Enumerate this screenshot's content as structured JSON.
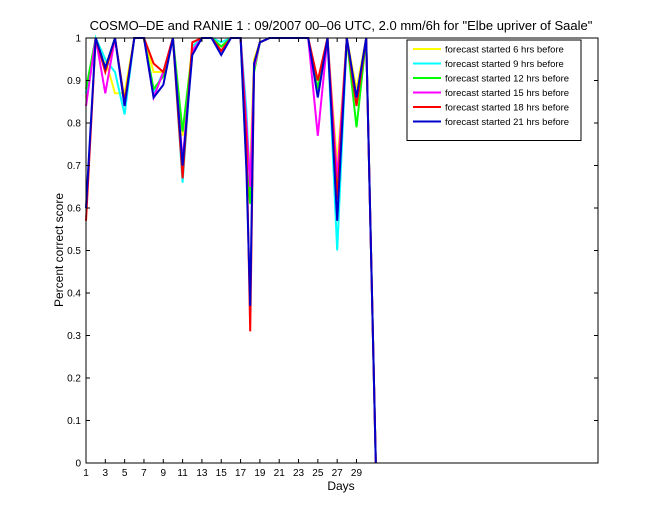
{
  "chart_data": {
    "type": "line",
    "title": "COSMO–DE and RANIE 1 : 09/2007 00–06 UTC, 2.0 mm/6h for \"Elbe upriver of Saale\"",
    "xlabel": "Days",
    "ylabel": "Percent correct score",
    "xlim": [
      1,
      54
    ],
    "ylim": [
      0,
      1
    ],
    "xticks": [
      1,
      3,
      5,
      7,
      9,
      11,
      13,
      15,
      17,
      19,
      21,
      23,
      25,
      27,
      29
    ],
    "yticks": [
      0,
      0.1,
      0.2,
      0.3,
      0.4,
      0.5,
      0.6,
      0.7,
      0.8,
      0.9,
      1
    ],
    "ytick_labels": [
      "0",
      "0.1",
      "0.2",
      "0.3",
      "0.4",
      "0.5",
      "0.6",
      "0.7",
      "0.8",
      "0.9",
      "1"
    ],
    "grid": false,
    "legend_position": "top-right",
    "x": [
      1,
      2,
      3,
      4,
      5,
      6,
      7,
      8,
      9,
      10,
      11,
      12,
      13,
      14,
      15,
      16,
      17,
      17.6,
      18,
      18.4,
      19,
      20,
      21,
      22,
      23,
      24,
      25,
      26,
      27,
      28,
      29,
      30,
      31
    ],
    "series": [
      {
        "name": "forecast started 6 hrs before",
        "color": "#ffff00",
        "values": [
          0.86,
          1,
          0.95,
          0.87,
          0.87,
          1,
          1,
          0.92,
          0.92,
          1,
          0.77,
          0.98,
          1,
          1,
          0.98,
          1,
          1,
          0.76,
          0.7,
          0.95,
          0.99,
          1,
          1,
          1,
          1,
          1,
          0.87,
          1,
          0.7,
          1,
          0.88,
          1,
          0
        ]
      },
      {
        "name": "forecast started 9 hrs before",
        "color": "#00ffff",
        "values": [
          0.87,
          1,
          0.95,
          0.92,
          0.82,
          1,
          1,
          0.87,
          0.92,
          1,
          0.66,
          0.98,
          1,
          1,
          0.99,
          1,
          1,
          0.83,
          0.64,
          0.93,
          0.99,
          1,
          1,
          1,
          1,
          1,
          0.87,
          1,
          0.5,
          1,
          0.85,
          1,
          0
        ]
      },
      {
        "name": "forecast started 12 hrs before",
        "color": "#00ff00",
        "values": [
          0.88,
          1,
          0.93,
          1,
          0.85,
          1,
          1,
          0.88,
          0.91,
          1,
          0.78,
          0.97,
          1,
          1,
          0.98,
          1,
          1,
          0.7,
          0.61,
          0.92,
          0.99,
          1,
          1,
          1,
          1,
          1,
          0.88,
          1,
          0.64,
          1,
          0.79,
          1,
          0
        ]
      },
      {
        "name": "forecast started 15 hrs before",
        "color": "#ff00ff",
        "values": [
          0.84,
          1,
          0.87,
          1,
          0.84,
          1,
          1,
          0.86,
          0.92,
          1,
          0.71,
          0.97,
          1,
          1,
          0.97,
          1,
          1,
          0.8,
          0.65,
          0.93,
          0.99,
          1,
          1,
          1,
          1,
          1,
          0.77,
          1,
          0.67,
          1,
          0.86,
          1,
          0
        ]
      },
      {
        "name": "forecast started 18 hrs before",
        "color": "#ff0000",
        "values": [
          0.57,
          1,
          0.92,
          1,
          0.85,
          1,
          1,
          0.94,
          0.92,
          1,
          0.67,
          0.99,
          1,
          1,
          0.97,
          1,
          1,
          0.76,
          0.31,
          0.94,
          0.99,
          1,
          1,
          1,
          1,
          1,
          0.9,
          1,
          0.62,
          1,
          0.84,
          1,
          0
        ]
      },
      {
        "name": "forecast started 21 hrs before",
        "color": "#0000cc",
        "values": [
          0.6,
          1,
          0.93,
          1,
          0.84,
          1,
          1,
          0.86,
          0.89,
          1,
          0.7,
          0.96,
          1,
          1,
          0.96,
          1,
          1,
          0.69,
          0.37,
          0.94,
          0.99,
          1,
          1,
          1,
          1,
          1,
          0.86,
          1,
          0.57,
          1,
          0.86,
          1,
          0
        ]
      }
    ]
  }
}
